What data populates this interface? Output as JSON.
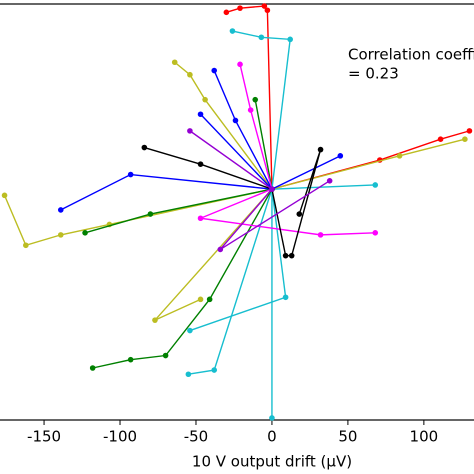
{
  "chart_data": {
    "type": "line",
    "xlabel": "10 V output drift (μV)",
    "annotation": [
      "Correlation coefficient",
      "= 0.23"
    ],
    "xlim": [
      -179,
      133
    ],
    "xticks": [
      -150,
      -100,
      -50,
      0,
      50,
      100
    ],
    "ylim": [
      -100,
      100
    ],
    "series": [
      {
        "color": "#ff0000",
        "x": [
          -30,
          -21,
          -5,
          -3,
          0,
          71,
          111,
          130
        ],
        "y": [
          96,
          98,
          99,
          97,
          11,
          25,
          35,
          39
        ]
      },
      {
        "color": "#17becf",
        "x": [
          -26,
          -7,
          12,
          0,
          0
        ],
        "y": [
          87,
          84,
          83,
          11,
          -99
        ]
      },
      {
        "color": "#17becf",
        "x": [
          -54,
          9,
          0,
          68
        ],
        "y": [
          -57,
          -41,
          11,
          13
        ]
      },
      {
        "color": "#17becf",
        "x": [
          -55,
          -38,
          0
        ],
        "y": [
          -78,
          -76,
          11
        ]
      },
      {
        "color": "#bcbd22",
        "x": [
          -176,
          -162,
          -139,
          -107,
          0,
          84,
          127
        ],
        "y": [
          8,
          -16,
          -11,
          -6,
          11,
          27,
          35
        ]
      },
      {
        "color": "#bcbd22",
        "x": [
          -64,
          -54,
          -44,
          0,
          -77,
          -47
        ],
        "y": [
          72,
          66,
          54,
          11,
          -52,
          -42
        ]
      },
      {
        "color": "#008000",
        "x": [
          -118,
          -93,
          -70,
          -41,
          0
        ],
        "y": [
          -75,
          -71,
          -69,
          -42,
          11
        ]
      },
      {
        "color": "#008000",
        "x": [
          -123,
          -80,
          0,
          -11
        ],
        "y": [
          -10,
          -1,
          11,
          54
        ]
      },
      {
        "color": "#0000ff",
        "x": [
          -38,
          -24,
          0,
          -93,
          -139
        ],
        "y": [
          68,
          44,
          11,
          18,
          1
        ]
      },
      {
        "color": "#0000ff",
        "x": [
          -47,
          0,
          45
        ],
        "y": [
          47,
          11,
          27
        ]
      },
      {
        "color": "#ff00ff",
        "x": [
          -21,
          -14,
          0,
          -47,
          32,
          68
        ],
        "y": [
          71,
          49,
          11,
          -3,
          -11,
          -10
        ]
      },
      {
        "color": "#000000",
        "x": [
          -84,
          -47,
          0,
          9,
          13,
          32,
          18
        ],
        "y": [
          31,
          23,
          11,
          -21,
          -21,
          30,
          -1
        ]
      },
      {
        "color": "#9400d3",
        "x": [
          -54,
          0,
          -34,
          38
        ],
        "y": [
          39,
          11,
          -18,
          15
        ]
      }
    ]
  }
}
